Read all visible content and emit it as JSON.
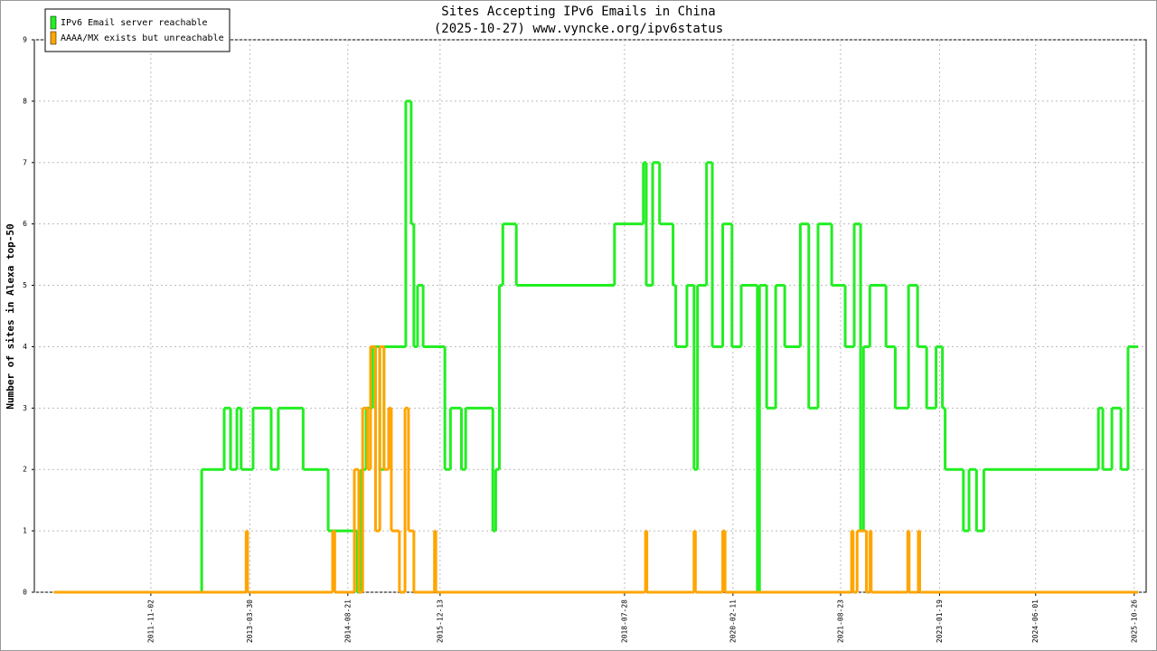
{
  "chart_data": {
    "type": "step",
    "title": "Sites Accepting IPv6 Emails in China",
    "subtitle": "(2025-10-27) www.vyncke.org/ipv6status",
    "y_label": "Number of sites in Alexa top-50",
    "xlim": [
      "2010-03-07",
      "2025-12-27"
    ],
    "xticks": [
      "2011-11-02",
      "2013-03-30",
      "2014-08-21",
      "2015-12-13",
      "2018-07-28",
      "2020-02-11",
      "2021-08-23",
      "2023-01-19",
      "2024-06-01",
      "2025-10-26"
    ],
    "ylim": [
      0,
      9
    ],
    "yticks": [
      0,
      1,
      2,
      3,
      4,
      5,
      6,
      7,
      8,
      9
    ],
    "grid": true,
    "legend": "top-left",
    "series": [
      {
        "name": "IPv6 Email server reachable",
        "color": "#22ee22",
        "x": [
          "2010-06-17",
          "2012-07-23",
          "2012-11-17",
          "2012-12-20",
          "2013-01-22",
          "2013-02-13",
          "2013-04-16",
          "2013-07-19",
          "2013-08-25",
          "2014-01-01",
          "2014-05-11",
          "2014-10-09",
          "2014-10-31",
          "2014-11-24",
          "2014-12-28",
          "2015-02-03",
          "2015-02-25",
          "2015-06-18",
          "2015-07-16",
          "2015-07-30",
          "2015-08-18",
          "2015-09-16",
          "2016-01-07",
          "2016-02-05",
          "2016-04-02",
          "2016-04-24",
          "2016-09-12",
          "2016-09-27",
          "2016-10-16",
          "2016-11-03",
          "2017-01-12",
          "2018-06-06",
          "2018-11-03",
          "2018-11-18",
          "2018-12-21",
          "2019-01-26",
          "2019-04-06",
          "2019-04-20",
          "2019-06-17",
          "2019-07-24",
          "2019-08-11",
          "2019-09-27",
          "2019-10-27",
          "2019-12-20",
          "2020-02-06",
          "2020-03-25",
          "2020-06-17",
          "2020-06-28",
          "2020-08-04",
          "2020-09-20",
          "2020-11-06",
          "2021-01-26",
          "2021-03-11",
          "2021-04-28",
          "2021-07-08",
          "2021-09-16",
          "2021-11-02",
          "2021-12-05",
          "2021-12-20",
          "2022-01-22",
          "2022-04-16",
          "2022-06-03",
          "2022-08-11",
          "2022-09-27",
          "2022-11-13",
          "2023-01-01",
          "2023-02-03",
          "2023-02-17",
          "2023-05-23",
          "2023-06-21",
          "2023-07-30",
          "2023-09-06",
          "2025-04-23",
          "2025-05-16",
          "2025-07-02",
          "2025-08-18",
          "2025-09-24",
          "2025-11-10"
        ],
        "values": [
          0,
          2,
          3,
          2,
          3,
          2,
          3,
          2,
          3,
          2,
          1,
          0,
          2,
          3,
          4,
          2,
          4,
          8,
          6,
          4,
          5,
          4,
          2,
          3,
          2,
          3,
          1,
          2,
          5,
          6,
          5,
          6,
          7,
          5,
          7,
          6,
          5,
          4,
          5,
          2,
          5,
          7,
          4,
          6,
          4,
          5,
          0,
          5,
          3,
          5,
          4,
          6,
          3,
          6,
          5,
          4,
          6,
          1,
          4,
          5,
          4,
          3,
          5,
          4,
          3,
          4,
          3,
          2,
          1,
          2,
          1,
          2,
          3,
          2,
          3,
          2,
          4,
          4
        ]
      },
      {
        "name": "AAAA/MX exists but unreachable",
        "color": "#ffa500",
        "x": [
          "2010-06-17",
          "2013-03-11",
          "2013-03-18",
          "2014-06-03",
          "2014-06-14",
          "2014-09-24",
          "2014-10-17",
          "2014-11-06",
          "2014-12-02",
          "2014-12-17",
          "2015-01-12",
          "2015-02-03",
          "2015-02-25",
          "2015-03-21",
          "2015-04-04",
          "2015-05-16",
          "2015-06-14",
          "2015-07-02",
          "2015-07-30",
          "2015-11-14",
          "2015-11-21",
          "2018-11-14",
          "2018-11-21",
          "2019-07-24",
          "2019-07-31",
          "2019-12-20",
          "2020-01-01",
          "2021-10-19",
          "2021-10-27",
          "2021-11-17",
          "2022-01-04",
          "2022-01-22",
          "2022-01-29",
          "2022-08-07",
          "2022-08-14",
          "2022-10-01",
          "2022-10-08",
          "2025-11-10"
        ],
        "values": [
          0,
          1,
          0,
          1,
          0,
          2,
          0,
          3,
          2,
          4,
          1,
          4,
          2,
          3,
          1,
          0,
          3,
          1,
          0,
          1,
          0,
          1,
          0,
          1,
          0,
          1,
          0,
          1,
          0,
          1,
          0,
          1,
          0,
          1,
          0,
          1,
          0,
          0
        ]
      }
    ]
  }
}
